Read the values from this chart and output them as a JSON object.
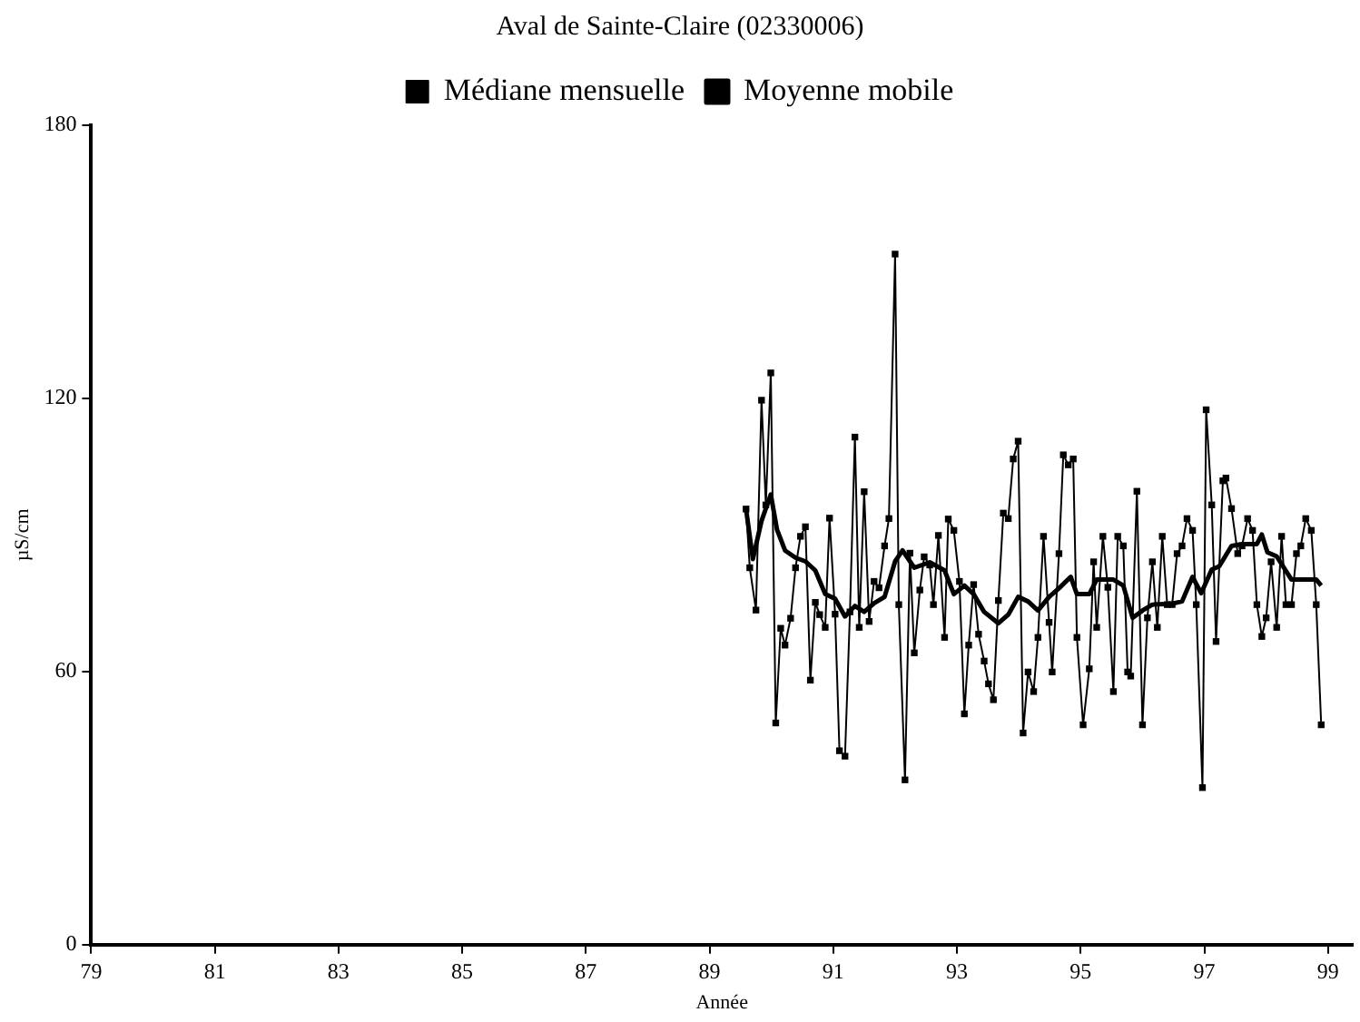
{
  "chart_data": {
    "type": "line",
    "title": "Aval de Sainte-Claire (02330006)",
    "xlabel": "Année",
    "ylabel": "µS/cm",
    "xlim": [
      79,
      99.4
    ],
    "xticks": [
      79,
      81,
      83,
      85,
      87,
      89,
      91,
      93,
      95,
      97,
      99
    ],
    "ylim": [
      0,
      180
    ],
    "yticks": [
      0,
      60,
      120,
      180
    ],
    "grid": false,
    "legend": "top",
    "series": [
      {
        "name": "Médiane mensuelle",
        "color": "#000000",
        "marker": "square",
        "x": [
          89.59,
          89.65,
          89.75,
          89.84,
          89.91,
          89.99,
          90.07,
          90.15,
          90.22,
          90.31,
          90.39,
          90.47,
          90.55,
          90.63,
          90.71,
          90.78,
          90.87,
          90.94,
          91.03,
          91.1,
          91.19,
          91.27,
          91.35,
          91.42,
          91.5,
          91.58,
          91.66,
          91.74,
          91.83,
          91.9,
          92.0,
          92.06,
          92.16,
          92.24,
          92.31,
          92.4,
          92.47,
          92.56,
          92.62,
          92.7,
          92.8,
          92.86,
          92.95,
          93.04,
          93.12,
          93.19,
          93.27,
          93.35,
          93.44,
          93.51,
          93.59,
          93.67,
          93.75,
          93.83,
          93.91,
          93.99,
          94.07,
          94.15,
          94.24,
          94.31,
          94.4,
          94.49,
          94.54,
          94.65,
          94.72,
          94.8,
          94.88,
          94.94,
          95.04,
          95.14,
          95.21,
          95.26,
          95.36,
          95.44,
          95.53,
          95.6,
          95.69,
          95.76,
          95.81,
          95.91,
          96.0,
          96.08,
          96.16,
          96.24,
          96.32,
          96.4,
          96.48,
          96.56,
          96.64,
          96.72,
          96.81,
          96.87,
          96.97,
          97.03,
          97.12,
          97.19,
          97.3,
          97.35,
          97.44,
          97.54,
          97.61,
          97.7,
          97.78,
          97.85,
          97.93,
          98.0,
          98.08,
          98.17,
          98.25,
          98.32,
          98.41,
          98.49,
          98.56,
          98.64,
          98.73,
          98.81,
          98.89
        ],
        "values": [
          95.7,
          82.8,
          73.5,
          119.6,
          96.6,
          125.6,
          48.7,
          69.5,
          65.8,
          71.7,
          82.8,
          89.7,
          91.8,
          58.1,
          75.2,
          72.5,
          69.7,
          93.7,
          72.6,
          42.6,
          41.4,
          73.1,
          111.5,
          69.7,
          99.5,
          71,
          79.8,
          78.4,
          87.6,
          93.6,
          151.7,
          74.7,
          36.2,
          86,
          64.1,
          77.9,
          85.2,
          83.4,
          74.7,
          89.9,
          67.5,
          93.5,
          91,
          79.8,
          50.7,
          65.8,
          79.1,
          68.2,
          62.3,
          57.3,
          53.8,
          75.6,
          94.8,
          93.6,
          106.7,
          110.6,
          46.5,
          59.9,
          55.6,
          67.5,
          89.7,
          70.8,
          59.9,
          85.9,
          107.6,
          105.4,
          106.7,
          67.5,
          48.3,
          60.6,
          84.1,
          69.7,
          89.7,
          78.5,
          55.6,
          89.7,
          87.6,
          59.9,
          59,
          99.6,
          48.3,
          71.8,
          84.1,
          69.7,
          89.7,
          74.7,
          74.7,
          85.9,
          87.6,
          93.6,
          91,
          74.7,
          34.5,
          117.5,
          96.6,
          66.6,
          101.9,
          102.5,
          95.8,
          85.9,
          87.6,
          93.6,
          91,
          74.7,
          67.7,
          71.8,
          84.1,
          69.7,
          89.7,
          74.7,
          74.7,
          85.9,
          87.6,
          93.6,
          91,
          74.7,
          48.3
        ]
      },
      {
        "name": "Moyenne mobile",
        "color": "#000000",
        "marker": "none",
        "x": [
          89.59,
          89.7,
          89.84,
          89.99,
          90.09,
          90.22,
          90.39,
          90.55,
          90.71,
          90.87,
          91.03,
          91.19,
          91.35,
          91.5,
          91.66,
          91.83,
          92.0,
          92.12,
          92.31,
          92.56,
          92.8,
          92.95,
          93.12,
          93.27,
          93.44,
          93.67,
          93.83,
          93.99,
          94.15,
          94.31,
          94.49,
          94.65,
          94.84,
          94.94,
          95.14,
          95.26,
          95.53,
          95.69,
          95.84,
          96.0,
          96.16,
          96.48,
          96.64,
          96.81,
          96.95,
          97.12,
          97.24,
          97.44,
          97.61,
          97.85,
          97.93,
          98.02,
          98.17,
          98.41,
          98.81,
          98.89
        ],
        "values": [
          95.7,
          84.7,
          93.1,
          98.9,
          91.2,
          86.6,
          85,
          84.2,
          82.2,
          77,
          76,
          72.1,
          74.4,
          73.1,
          75,
          76.4,
          84.2,
          86.6,
          82.8,
          84,
          82.2,
          77,
          78.9,
          77,
          73.1,
          70.6,
          72.5,
          76.4,
          75.4,
          73.4,
          76.4,
          78.3,
          80.8,
          77,
          77,
          80.2,
          80.2,
          78.9,
          71.8,
          73.4,
          74.7,
          74.9,
          75.4,
          80.8,
          77.2,
          82.4,
          83.1,
          87.6,
          88,
          88,
          90.1,
          86.2,
          85.3,
          80.2,
          80.2,
          78.9
        ]
      }
    ]
  }
}
